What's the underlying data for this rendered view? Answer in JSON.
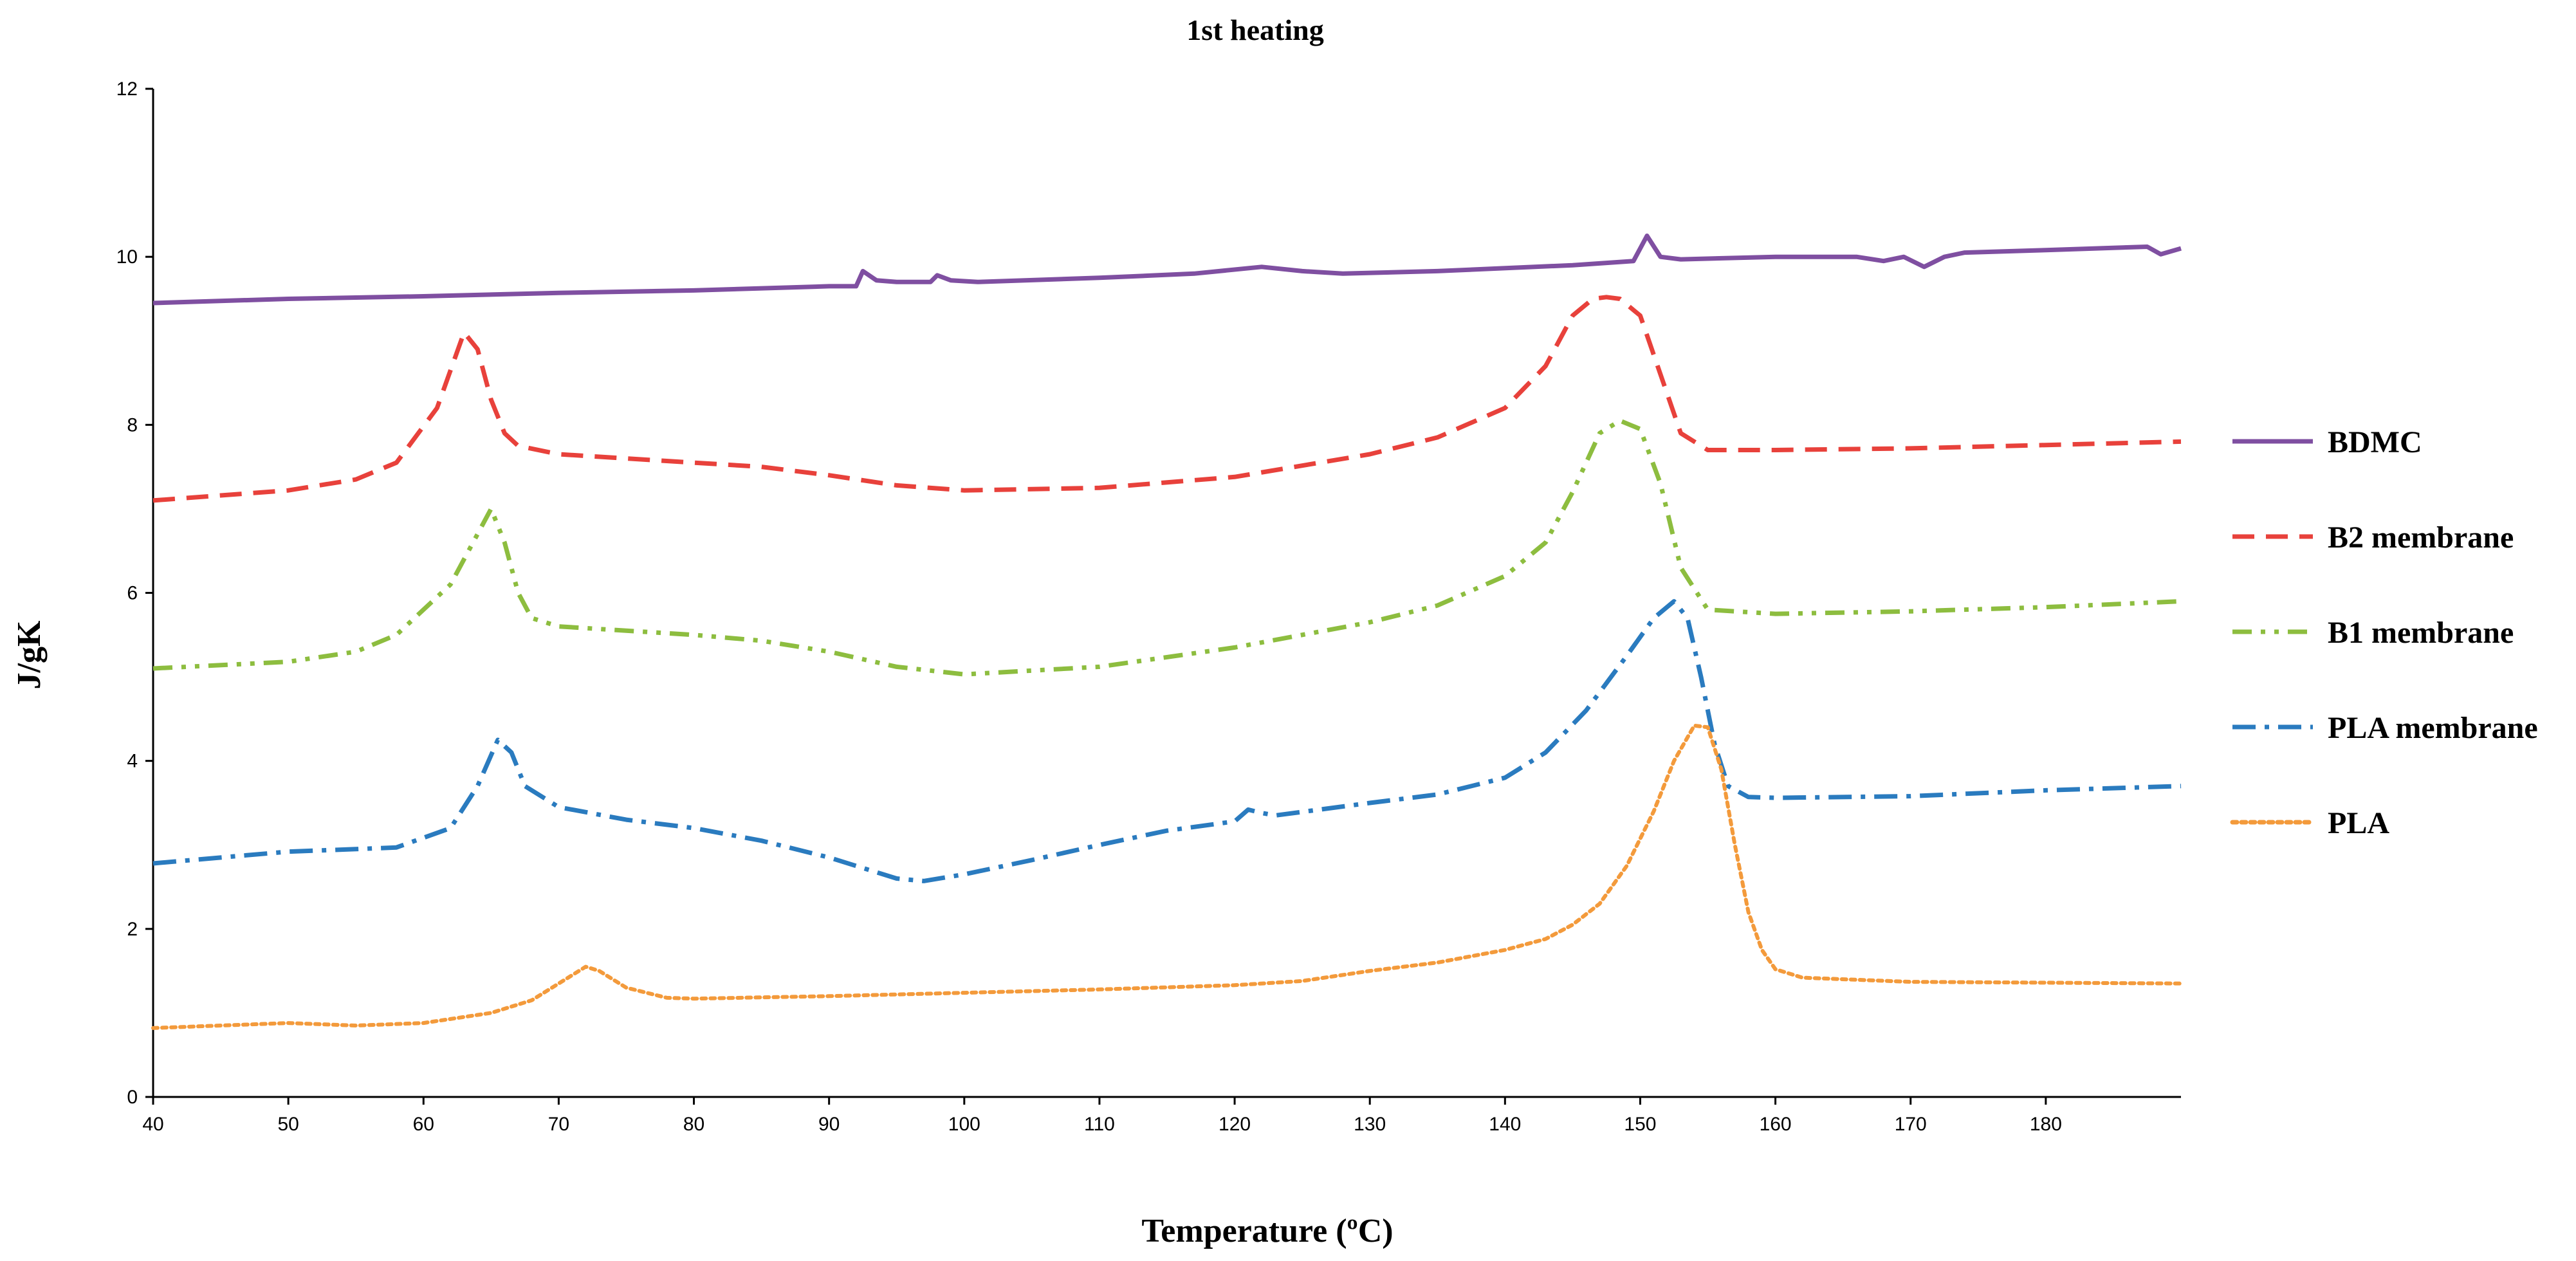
{
  "chart_data": {
    "type": "line",
    "title": "1st heating",
    "xlabel": "Temperature (ºC)",
    "ylabel": "J/gK",
    "xlim": [
      40,
      190
    ],
    "ylim": [
      0,
      12
    ],
    "x_ticks": [
      40,
      50,
      60,
      70,
      80,
      90,
      100,
      110,
      120,
      130,
      140,
      150,
      160,
      170,
      180
    ],
    "y_ticks": [
      0,
      2,
      4,
      6,
      8,
      10,
      12
    ],
    "grid": false,
    "legend_position": "right",
    "series": [
      {
        "name": "BDMC",
        "color": "#7f4fa1",
        "style": "solid",
        "x": [
          40,
          50,
          60,
          70,
          80,
          90,
          92,
          92.5,
          93.5,
          95,
          97.5,
          98,
          99,
          101,
          110,
          117,
          122,
          125,
          128,
          135,
          145,
          149.5,
          150.5,
          151.5,
          153,
          160,
          166,
          168,
          169.5,
          171,
          172.5,
          174,
          180,
          187.5,
          188.5,
          190
        ],
        "y": [
          9.45,
          9.5,
          9.53,
          9.57,
          9.6,
          9.65,
          9.65,
          9.83,
          9.72,
          9.7,
          9.7,
          9.78,
          9.72,
          9.7,
          9.75,
          9.8,
          9.88,
          9.83,
          9.8,
          9.83,
          9.9,
          9.95,
          10.25,
          10.0,
          9.97,
          10.0,
          10.0,
          9.95,
          10.0,
          9.88,
          10.0,
          10.05,
          10.08,
          10.12,
          10.03,
          10.1
        ]
      },
      {
        "name": "B2 membrane",
        "color": "#e8413b",
        "style": "dash",
        "x": [
          40,
          50,
          55,
          58,
          61,
          63,
          64,
          65,
          66,
          67,
          70,
          80,
          85,
          90,
          95,
          100,
          110,
          120,
          130,
          135,
          140,
          143,
          145,
          146.5,
          147.5,
          148.5,
          150,
          151.5,
          153,
          155,
          160,
          170,
          180,
          190
        ],
        "y": [
          7.1,
          7.22,
          7.35,
          7.55,
          8.2,
          9.1,
          8.9,
          8.3,
          7.9,
          7.75,
          7.65,
          7.55,
          7.5,
          7.4,
          7.28,
          7.22,
          7.25,
          7.38,
          7.65,
          7.85,
          8.2,
          8.7,
          9.3,
          9.5,
          9.52,
          9.5,
          9.3,
          8.6,
          7.9,
          7.7,
          7.7,
          7.72,
          7.76,
          7.8
        ]
      },
      {
        "name": "B1 membrane",
        "color": "#8dbd3f",
        "style": "dashdotdot",
        "x": [
          40,
          50,
          55,
          58,
          62,
          64,
          65,
          66,
          67,
          68,
          70,
          80,
          85,
          90,
          95,
          100,
          110,
          120,
          130,
          135,
          140,
          143,
          145,
          147,
          148.5,
          150,
          151.5,
          153,
          155,
          160,
          170,
          180,
          190
        ],
        "y": [
          5.1,
          5.18,
          5.3,
          5.5,
          6.1,
          6.7,
          7.0,
          6.6,
          6.0,
          5.7,
          5.6,
          5.5,
          5.43,
          5.3,
          5.12,
          5.03,
          5.12,
          5.35,
          5.65,
          5.85,
          6.2,
          6.6,
          7.2,
          7.9,
          8.05,
          7.95,
          7.3,
          6.3,
          5.8,
          5.75,
          5.78,
          5.83,
          5.9
        ]
      },
      {
        "name": "PLA membrane",
        "color": "#2a7bbf",
        "style": "dashdot",
        "x": [
          40,
          50,
          55,
          58,
          62,
          64,
          65.5,
          66.5,
          67.5,
          70,
          75,
          80,
          85,
          90,
          95,
          97,
          100,
          105,
          110,
          115,
          120,
          121,
          122,
          123,
          130,
          135,
          140,
          143,
          146,
          149,
          151,
          152.5,
          153.5,
          154.5,
          155.5,
          156.5,
          158,
          160,
          170,
          180,
          190
        ],
        "y": [
          2.78,
          2.92,
          2.95,
          2.97,
          3.2,
          3.7,
          4.25,
          4.1,
          3.7,
          3.45,
          3.3,
          3.2,
          3.05,
          2.85,
          2.6,
          2.57,
          2.65,
          2.82,
          3.0,
          3.17,
          3.28,
          3.42,
          3.38,
          3.35,
          3.5,
          3.6,
          3.8,
          4.1,
          4.6,
          5.25,
          5.7,
          5.9,
          5.7,
          5.0,
          4.2,
          3.7,
          3.57,
          3.56,
          3.58,
          3.65,
          3.7
        ]
      },
      {
        "name": "PLA",
        "color": "#f39a3b",
        "style": "dot",
        "x": [
          40,
          50,
          55,
          60,
          65,
          68,
          70,
          72,
          73,
          75,
          78,
          80,
          90,
          100,
          110,
          120,
          125,
          130,
          135,
          140,
          143,
          145,
          147,
          149,
          151,
          152.5,
          154,
          155,
          156,
          157,
          158,
          159,
          160,
          162,
          170,
          180,
          190
        ],
        "y": [
          0.82,
          0.88,
          0.85,
          0.88,
          1.0,
          1.15,
          1.35,
          1.55,
          1.5,
          1.3,
          1.18,
          1.17,
          1.2,
          1.24,
          1.28,
          1.33,
          1.38,
          1.5,
          1.6,
          1.75,
          1.88,
          2.05,
          2.3,
          2.75,
          3.4,
          4.0,
          4.42,
          4.4,
          3.9,
          3.0,
          2.2,
          1.75,
          1.52,
          1.42,
          1.37,
          1.36,
          1.35
        ]
      }
    ]
  }
}
